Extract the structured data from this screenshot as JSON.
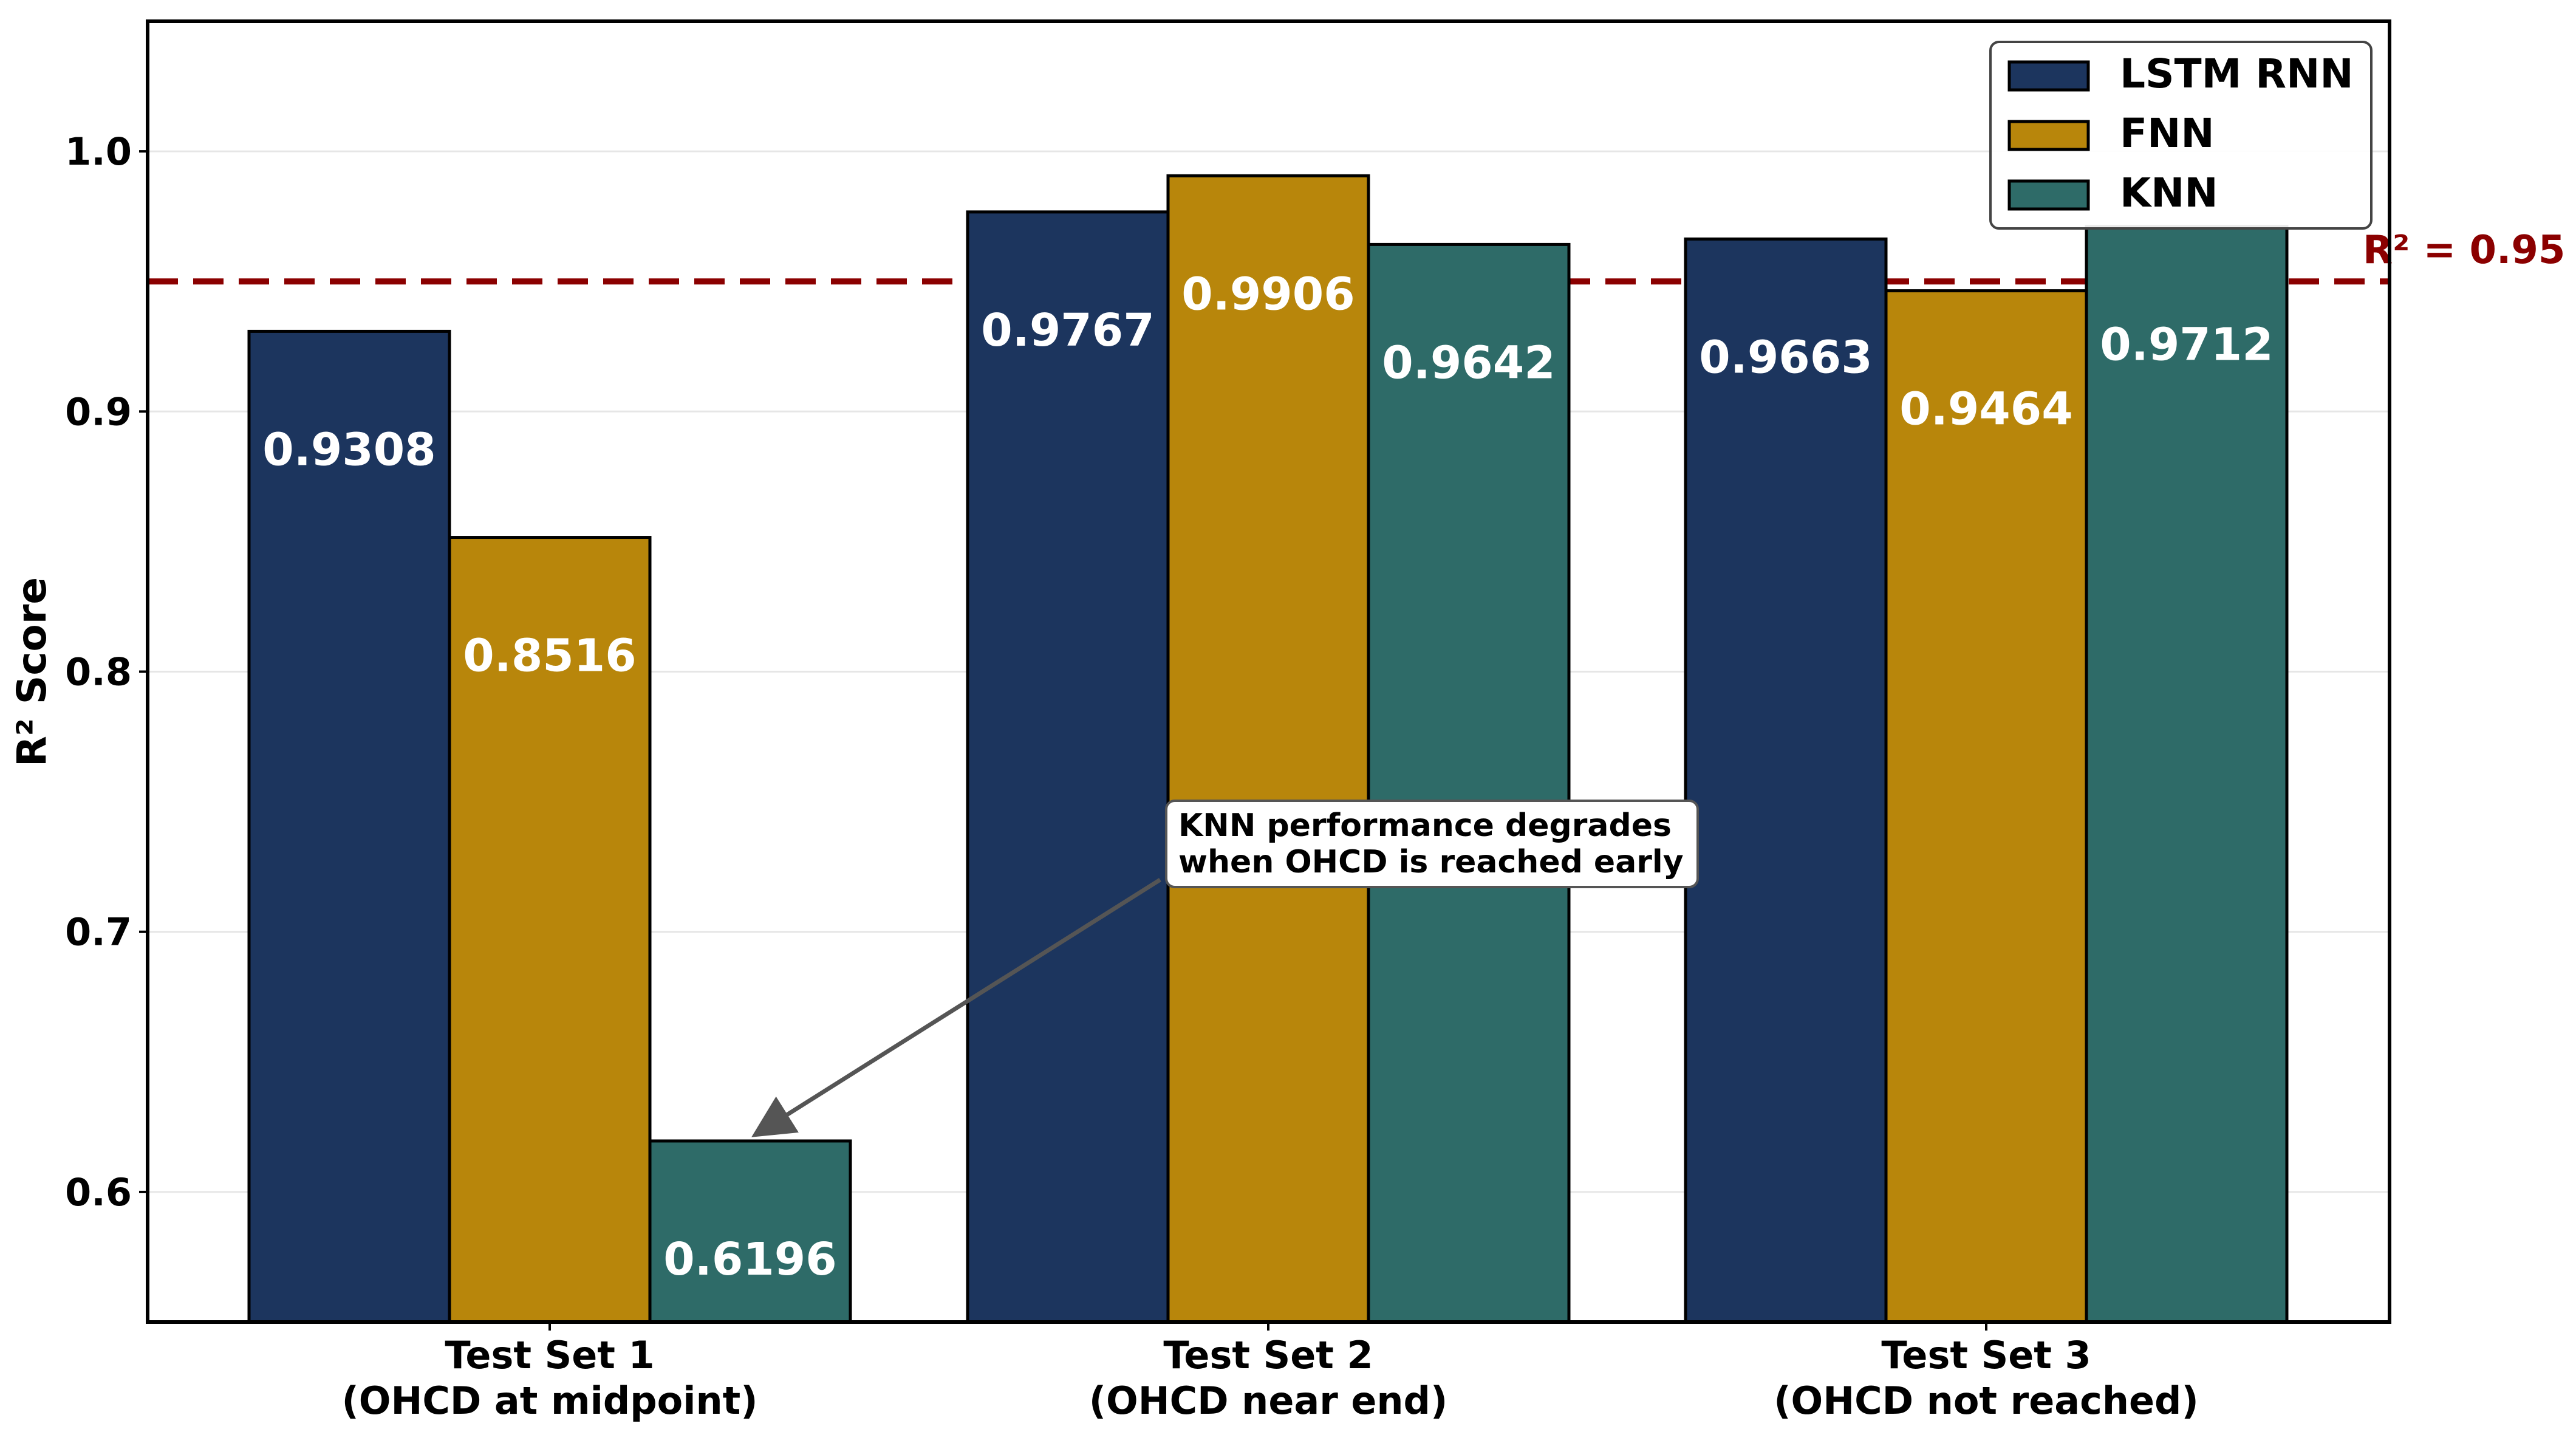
{
  "chart_data": {
    "type": "bar",
    "title": "",
    "xlabel": "",
    "ylabel": "R² Score",
    "ylim": [
      0.55,
      1.05
    ],
    "yticks": [
      "0.6",
      "0.7",
      "0.8",
      "0.9",
      "1.0"
    ],
    "ytick_values": [
      0.6,
      0.7,
      0.8,
      0.9,
      1.0
    ],
    "grid": true,
    "categories": [
      {
        "line1": "Test Set 1",
        "line2": "(OHCD at midpoint)"
      },
      {
        "line1": "Test Set 2",
        "line2": "(OHCD near end)"
      },
      {
        "line1": "Test Set 3",
        "line2": "(OHCD not reached)"
      }
    ],
    "series": [
      {
        "name": "LSTM RNN",
        "color": "#1c355e",
        "values": [
          0.9308,
          0.9767,
          0.9663
        ],
        "labels": [
          "0.9308",
          "0.9767",
          "0.9663"
        ]
      },
      {
        "name": "FNN",
        "color": "#b8860b",
        "values": [
          0.8516,
          0.9906,
          0.9464
        ],
        "labels": [
          "0.8516",
          "0.9906",
          "0.9464"
        ]
      },
      {
        "name": "KNN",
        "color": "#2e6b68",
        "values": [
          0.6196,
          0.9642,
          0.9712
        ],
        "labels": [
          "0.6196",
          "0.9642",
          "0.9712"
        ]
      }
    ],
    "reference_line": {
      "value": 0.95,
      "label": "R² = 0.95",
      "color": "#8b0000"
    },
    "annotation": {
      "line1": "KNN performance degrades",
      "line2": "when OHCD is reached early",
      "target_category": 0,
      "target_series": 2
    },
    "legend_position": "top-right"
  }
}
